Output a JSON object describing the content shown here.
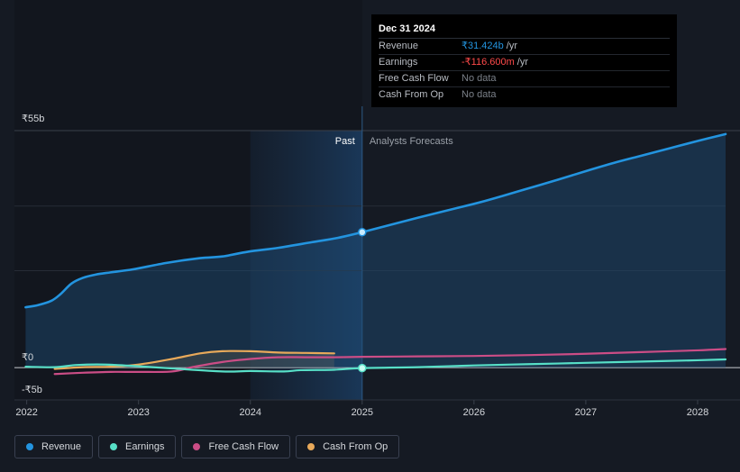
{
  "chart_data": {
    "type": "area",
    "title": "",
    "xlabel": "",
    "ylabel": "",
    "xlim": [
      2021.89,
      2028.25
    ],
    "ylim": [
      -5,
      55
    ],
    "y_tick_labels": [
      {
        "value": 55,
        "label": "₹55b"
      },
      {
        "value": 0,
        "label": "₹0"
      },
      {
        "value": -5,
        "label": "-₹5b"
      }
    ],
    "x_ticks": [
      2022,
      2023,
      2024,
      2025,
      2026,
      2027,
      2028
    ],
    "grid": true,
    "legend_placement": "bottom-left",
    "forecast_start": 2025.0,
    "past_label": "Past",
    "forecast_label": "Analysts Forecasts",
    "series": [
      {
        "name": "Revenue",
        "color": "#2394df",
        "x": [
          2021.99,
          2022.1,
          2022.22,
          2022.3,
          2022.4,
          2022.5,
          2022.62,
          2022.75,
          2022.95,
          2023.25,
          2023.55,
          2023.75,
          2023.98,
          2024.25,
          2024.55,
          2024.78,
          2025.0,
          2025.5,
          2026.0,
          2026.25,
          2026.5,
          2026.75,
          2027.0,
          2027.25,
          2027.5,
          2027.75,
          2028.0,
          2028.25
        ],
        "y": [
          14.0,
          14.5,
          15.5,
          17.0,
          19.5,
          20.8,
          21.6,
          22.1,
          22.8,
          24.3,
          25.4,
          25.8,
          26.9,
          27.8,
          29.1,
          30.1,
          31.424,
          34.8,
          38.0,
          39.8,
          41.7,
          43.6,
          45.6,
          47.5,
          49.2,
          50.9,
          52.6,
          54.2
        ]
      },
      {
        "name": "Earnings",
        "color": "#57dfc7",
        "x": [
          2021.99,
          2022.25,
          2022.45,
          2022.7,
          2023.0,
          2023.3,
          2023.75,
          2024.0,
          2024.3,
          2024.45,
          2024.75,
          2025.0,
          2025.5,
          2026.0,
          2026.5,
          2027.0,
          2027.5,
          2028.0,
          2028.25
        ],
        "y": [
          0.2,
          0.1,
          0.6,
          0.7,
          0.3,
          -0.2,
          -0.9,
          -0.8,
          -0.9,
          -0.6,
          -0.5,
          -0.1166,
          0.1,
          0.5,
          0.8,
          1.1,
          1.4,
          1.7,
          1.9
        ]
      },
      {
        "name": "Free Cash Flow",
        "color": "#cb4d86",
        "x": [
          2022.25,
          2022.5,
          2022.75,
          2023.0,
          2023.3,
          2023.5,
          2023.75,
          2024.0,
          2024.25,
          2024.5,
          2024.75,
          2025.0,
          2025.5,
          2026.0,
          2026.5,
          2027.0,
          2027.5,
          2028.0,
          2028.25
        ],
        "y": [
          -1.5,
          -1.2,
          -1.0,
          -1.0,
          -0.9,
          0.2,
          1.3,
          2.0,
          2.4,
          2.4,
          2.4,
          2.5,
          2.6,
          2.7,
          2.9,
          3.2,
          3.6,
          4.0,
          4.3
        ]
      },
      {
        "name": "Cash From Op",
        "color": "#e8a95a",
        "x": [
          2022.25,
          2022.5,
          2022.75,
          2023.0,
          2023.3,
          2023.55,
          2023.75,
          2024.0,
          2024.25,
          2024.5,
          2024.75
        ],
        "y": [
          -0.3,
          0.1,
          0.2,
          0.7,
          2.0,
          3.3,
          3.8,
          3.8,
          3.5,
          3.4,
          3.3
        ]
      }
    ]
  },
  "tooltip": {
    "date": "Dec 31 2024",
    "rows": [
      {
        "label": "Revenue",
        "value": "₹31.424b",
        "unit": "/yr",
        "color": "#2394df"
      },
      {
        "label": "Earnings",
        "value": "-₹116.600m",
        "unit": "/yr",
        "color": "#ff4a4a"
      },
      {
        "label": "Free Cash Flow",
        "value": "No data",
        "unit": "",
        "color": "#7b8089"
      },
      {
        "label": "Cash From Op",
        "value": "No data",
        "unit": "",
        "color": "#7b8089"
      }
    ]
  },
  "legend": [
    {
      "label": "Revenue",
      "color": "#2394df"
    },
    {
      "label": "Earnings",
      "color": "#57dfc7"
    },
    {
      "label": "Free Cash Flow",
      "color": "#cb4d86"
    },
    {
      "label": "Cash From Op",
      "color": "#e8a95a"
    }
  ]
}
